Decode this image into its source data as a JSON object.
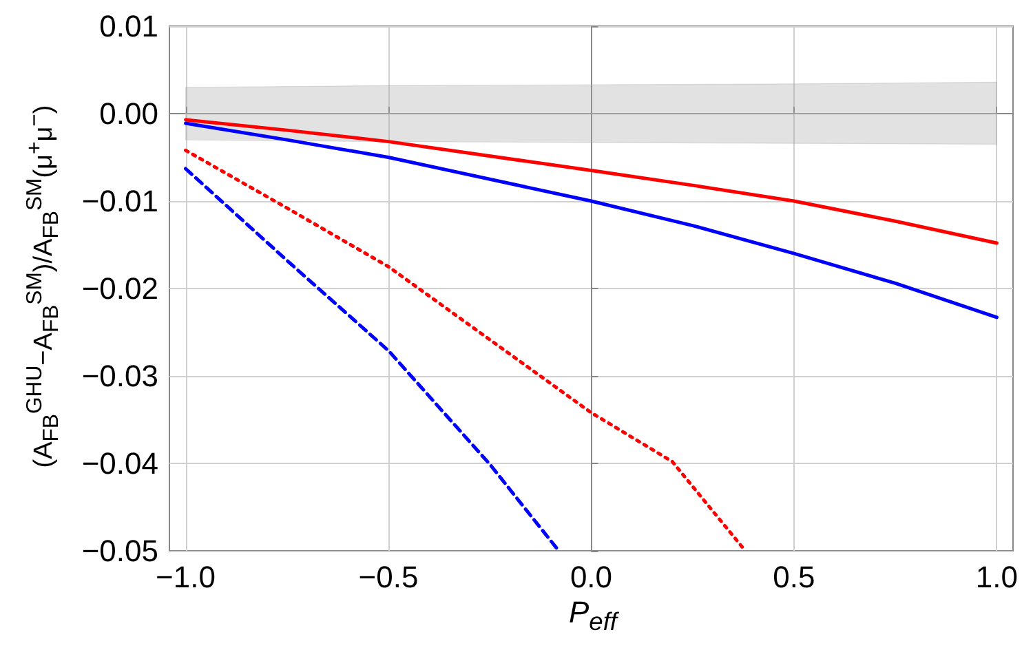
{
  "chart_data": {
    "type": "line",
    "xlabel": "P$_{eff}$",
    "ylabel": "(A$_{FB}$$^{GHU}$−A$_{FB}$$^{SM}$)/A$_{FB}$$^{SM}$(μ$^{+}$μ$^{−}$)",
    "xlim": [
      -1.04,
      1.04
    ],
    "ylim": [
      -0.05,
      0.01
    ],
    "xticks": [
      {
        "value": -1,
        "label": "−1.0"
      },
      {
        "value": -0.5,
        "label": "−0.5"
      },
      {
        "value": 0,
        "label": "0.0"
      },
      {
        "value": 0.5,
        "label": "0.5"
      },
      {
        "value": 1,
        "label": "1.0"
      }
    ],
    "yticks": [
      {
        "value": -0.05,
        "label": "−0.05"
      },
      {
        "value": -0.04,
        "label": "−0.04"
      },
      {
        "value": -0.03,
        "label": "−0.03"
      },
      {
        "value": -0.02,
        "label": "−0.02"
      },
      {
        "value": -0.01,
        "label": "−0.01"
      },
      {
        "value": 0,
        "label": "0.00"
      },
      0.01
    ],
    "grid": true,
    "marker": "none",
    "series": [
      {
        "color": "#a0a0a0",
        "x": [
          -1,
          -0.5,
          0,
          0.5,
          1
        ],
        "values": [
          0,
          0,
          0,
          0,
          0
        ],
        "lower": [
          -0.003,
          -0.0032,
          -0.0033,
          -0.0034,
          -0.0035
        ],
        "upper": [
          0.003,
          0.0032,
          0.0033,
          0.0034,
          0.0036
        ]
      },
      {
        "color": "#ff0000",
        "line_style": "solid",
        "x": [
          -1,
          -0.75,
          -0.5,
          0,
          0.25,
          0.5,
          0.75,
          1
        ],
        "values": [
          -0.0007,
          -0.0019,
          -0.0032,
          -0.0065,
          -0.0082,
          -0.01,
          -0.0123,
          -0.0148
        ]
      },
      {
        "color": "#0000ff",
        "line_style": "solid",
        "x": [
          -1,
          -0.75,
          -0.5,
          0,
          0.25,
          0.5,
          0.75,
          1
        ],
        "values": [
          -0.0011,
          -0.003,
          -0.005,
          -0.01,
          -0.0128,
          -0.016,
          -0.0194,
          -0.0233
        ]
      },
      {
        "color": "#ff0000",
        "line_style": "dotted",
        "x": [
          -1,
          -0.75,
          -0.5,
          0,
          0.2,
          0.38
        ],
        "values": [
          -0.0042,
          -0.0108,
          -0.0175,
          -0.0342,
          -0.0398,
          -0.05
        ]
      },
      {
        "color": "#0000ff",
        "line_style": "dashed",
        "x": [
          -1,
          -0.75,
          -0.5,
          -0.25,
          -0.08
        ],
        "values": [
          -0.0063,
          -0.0168,
          -0.0271,
          -0.0401,
          -0.05
        ]
      }
    ]
  }
}
